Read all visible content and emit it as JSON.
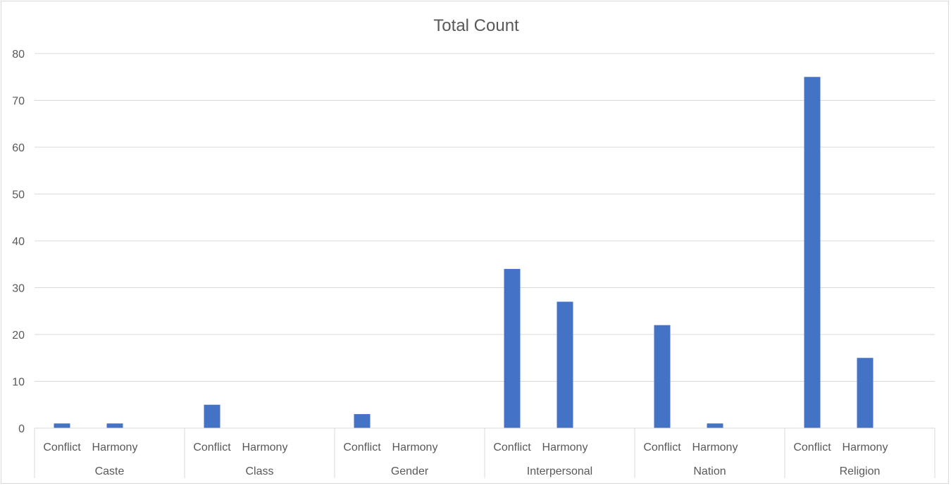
{
  "chart_data": {
    "type": "bar",
    "title": "Total Count",
    "xlabel": "",
    "ylabel": "",
    "ylim": [
      0,
      80
    ],
    "yticks": [
      0,
      10,
      20,
      30,
      40,
      50,
      60,
      70,
      80
    ],
    "grid": true,
    "legend": "none",
    "color": "#4472c4",
    "groups": [
      {
        "name": "Caste",
        "categories": [
          "Conflict",
          "Harmony"
        ],
        "values": [
          1,
          1
        ]
      },
      {
        "name": "Class",
        "categories": [
          "Conflict",
          "Harmony"
        ],
        "values": [
          5,
          0
        ]
      },
      {
        "name": "Gender",
        "categories": [
          "Conflict",
          "Harmony"
        ],
        "values": [
          3,
          0
        ]
      },
      {
        "name": "Interpersonal",
        "categories": [
          "Conflict",
          "Harmony"
        ],
        "values": [
          34,
          27
        ]
      },
      {
        "name": "Nation",
        "categories": [
          "Conflict",
          "Harmony"
        ],
        "values": [
          22,
          1
        ]
      },
      {
        "name": "Religion",
        "categories": [
          "Conflict",
          "Harmony"
        ],
        "values": [
          75,
          15
        ]
      }
    ]
  }
}
